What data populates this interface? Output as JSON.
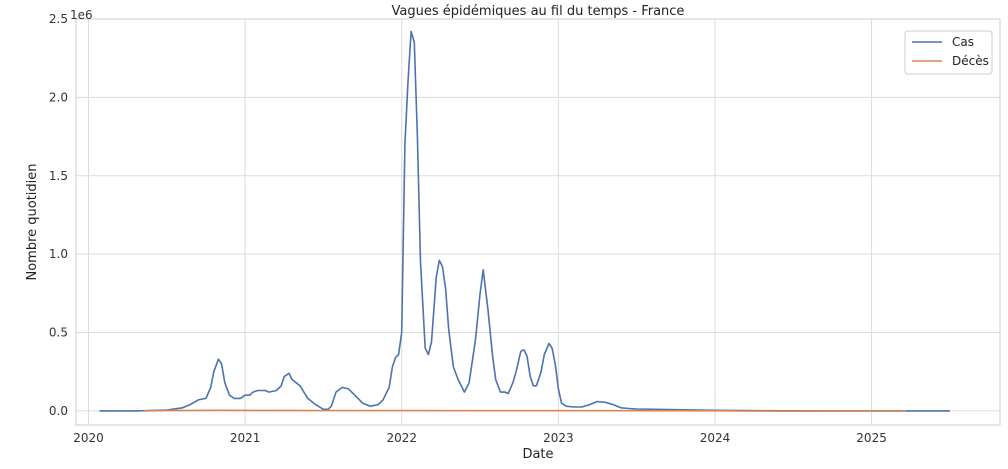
{
  "chart_data": {
    "type": "line",
    "title": "Vagues épidémiques au fil du temps - France",
    "xlabel": "Date",
    "ylabel": "Nombre quotidien",
    "y_offset_label": "1e6",
    "xlim": [
      2019.92,
      2025.82
    ],
    "ylim": [
      -0.09,
      2.5
    ],
    "x_ticks": [
      2020,
      2021,
      2022,
      2023,
      2024,
      2025
    ],
    "x_tick_labels": [
      "2020",
      "2021",
      "2022",
      "2023",
      "2024",
      "2025"
    ],
    "y_ticks": [
      0.0,
      0.5,
      1.0,
      1.5,
      2.0,
      2.5
    ],
    "y_tick_labels": [
      "0.0",
      "0.5",
      "1.0",
      "1.5",
      "2.0",
      "2.5"
    ],
    "grid": true,
    "legend_position": "top-right",
    "series": [
      {
        "name": "Cas",
        "color": "#4c72b0",
        "x": [
          2020.07,
          2020.3,
          2020.5,
          2020.6,
          2020.65,
          2020.7,
          2020.75,
          2020.78,
          2020.8,
          2020.83,
          2020.85,
          2020.87,
          2020.9,
          2020.93,
          2020.97,
          2021.0,
          2021.03,
          2021.05,
          2021.08,
          2021.1,
          2021.13,
          2021.15,
          2021.2,
          2021.23,
          2021.25,
          2021.28,
          2021.3,
          2021.35,
          2021.4,
          2021.45,
          2021.5,
          2021.53,
          2021.55,
          2021.58,
          2021.62,
          2021.66,
          2021.7,
          2021.75,
          2021.8,
          2021.85,
          2021.88,
          2021.92,
          2021.94,
          2021.96,
          2021.98,
          2022.0,
          2022.02,
          2022.04,
          2022.06,
          2022.08,
          2022.1,
          2022.12,
          2022.15,
          2022.17,
          2022.19,
          2022.22,
          2022.24,
          2022.26,
          2022.28,
          2022.3,
          2022.33,
          2022.36,
          2022.4,
          2022.43,
          2022.47,
          2022.5,
          2022.52,
          2022.55,
          2022.58,
          2022.6,
          2022.63,
          2022.66,
          2022.68,
          2022.71,
          2022.73,
          2022.76,
          2022.78,
          2022.8,
          2022.82,
          2022.84,
          2022.86,
          2022.89,
          2022.91,
          2022.94,
          2022.96,
          2022.98,
          2023.0,
          2023.02,
          2023.05,
          2023.1,
          2023.15,
          2023.2,
          2023.25,
          2023.3,
          2023.35,
          2023.4,
          2023.45,
          2023.5,
          2023.7,
          2024.0,
          2024.3,
          2024.6,
          2025.0,
          2025.5
        ],
        "y": [
          0.0,
          0.0,
          0.005,
          0.02,
          0.04,
          0.07,
          0.08,
          0.15,
          0.25,
          0.33,
          0.3,
          0.18,
          0.1,
          0.08,
          0.08,
          0.1,
          0.1,
          0.12,
          0.13,
          0.13,
          0.13,
          0.12,
          0.13,
          0.16,
          0.22,
          0.24,
          0.2,
          0.16,
          0.08,
          0.04,
          0.01,
          0.01,
          0.03,
          0.12,
          0.15,
          0.14,
          0.1,
          0.05,
          0.03,
          0.04,
          0.07,
          0.15,
          0.28,
          0.34,
          0.36,
          0.5,
          1.7,
          2.1,
          2.42,
          2.35,
          1.75,
          0.95,
          0.4,
          0.36,
          0.44,
          0.85,
          0.96,
          0.92,
          0.78,
          0.52,
          0.28,
          0.2,
          0.12,
          0.18,
          0.45,
          0.75,
          0.9,
          0.65,
          0.35,
          0.2,
          0.12,
          0.12,
          0.11,
          0.18,
          0.25,
          0.38,
          0.39,
          0.35,
          0.22,
          0.16,
          0.16,
          0.25,
          0.36,
          0.43,
          0.4,
          0.3,
          0.14,
          0.05,
          0.03,
          0.025,
          0.025,
          0.04,
          0.06,
          0.055,
          0.04,
          0.02,
          0.015,
          0.012,
          0.008,
          0.004,
          0.001,
          0.0,
          0.0,
          0.0
        ]
      },
      {
        "name": "Décès",
        "color": "#dd8452",
        "x": [
          2020.35,
          2020.5,
          2020.85,
          2021.0,
          2021.5,
          2022.0,
          2022.5,
          2023.0,
          2023.5,
          2024.0,
          2024.5,
          2024.8,
          2025.0,
          2025.22
        ],
        "y": [
          0.0,
          0.002,
          0.004,
          0.003,
          0.002,
          0.002,
          0.001,
          0.001,
          0.001,
          0.0008,
          -0.002,
          0.0,
          -0.001,
          -0.001
        ]
      }
    ]
  }
}
